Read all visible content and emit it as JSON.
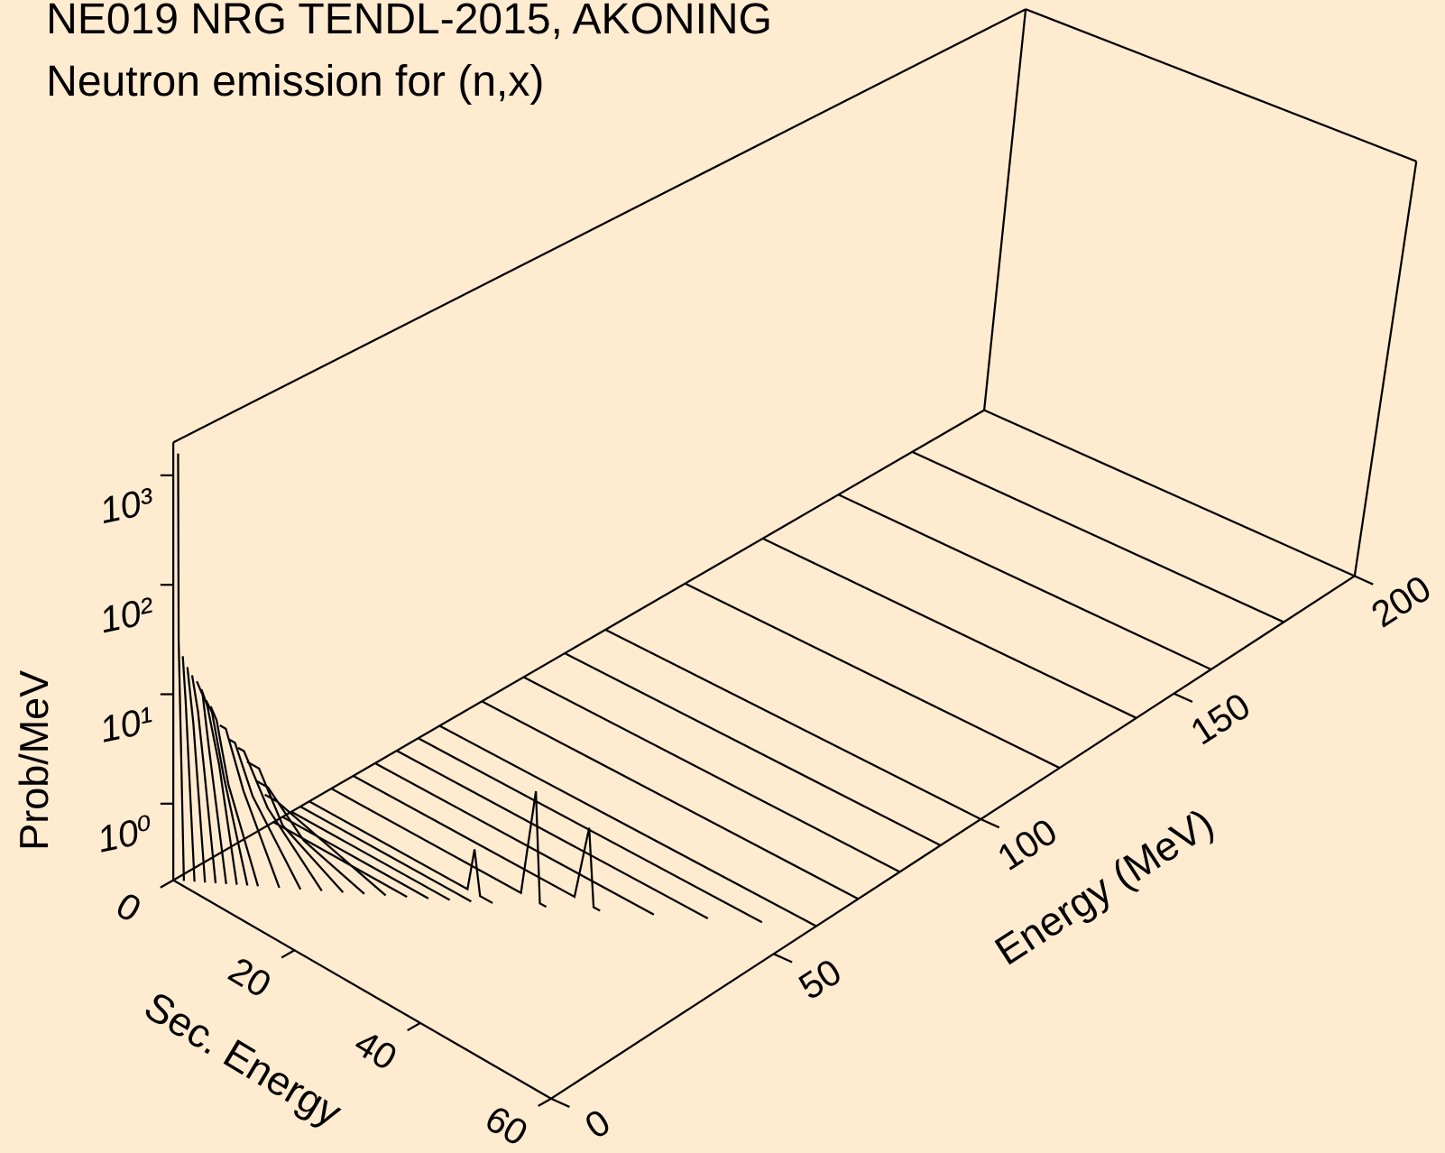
{
  "chart_data": {
    "type": "waterfall3d",
    "title": "NE019 NRG TENDL-2015, AKONING",
    "subtitle": "Neutron emission for (n,x)",
    "xlabel": "Sec. Energy",
    "ylabel": "Energy (MeV)",
    "zlabel": "Prob/MeV",
    "color": "#000000",
    "xlim": [
      0,
      60
    ],
    "xticks": [
      0,
      20,
      40,
      60
    ],
    "ylim": [
      0,
      200
    ],
    "yticks": [
      0,
      50,
      100,
      150,
      200
    ],
    "zlim": [
      0.2,
      2000
    ],
    "zscale": "log",
    "zticks": [
      {
        "value": 1,
        "label": "10⁰"
      },
      {
        "value": 10,
        "label": "10¹"
      },
      {
        "value": 100,
        "label": "10²"
      },
      {
        "value": 1000,
        "label": "10³"
      }
    ],
    "series": [
      {
        "energy": 1,
        "x": [
          0,
          0.1,
          1
        ],
        "values": [
          1500,
          30,
          0.2
        ]
      },
      {
        "energy": 2,
        "x": [
          0,
          0.5,
          2
        ],
        "values": [
          20,
          8,
          0.2
        ]
      },
      {
        "energy": 3,
        "x": [
          0,
          1,
          3
        ],
        "values": [
          15,
          5,
          0.2
        ]
      },
      {
        "energy": 4,
        "x": [
          0,
          1,
          2,
          4
        ],
        "values": [
          12,
          6,
          2,
          0.2
        ]
      },
      {
        "energy": 5,
        "x": [
          0,
          1,
          2,
          5
        ],
        "values": [
          10,
          8,
          3,
          0.2
        ]
      },
      {
        "energy": 6,
        "x": [
          0,
          1,
          3,
          6
        ],
        "values": [
          8,
          6,
          2,
          0.2
        ]
      },
      {
        "energy": 7,
        "x": [
          0,
          1,
          3,
          7
        ],
        "values": [
          6,
          5,
          1.5,
          0.2
        ]
      },
      {
        "energy": 8,
        "x": [
          0,
          1,
          3,
          8
        ],
        "values": [
          5,
          4,
          1.2,
          0.2
        ]
      },
      {
        "energy": 10,
        "x": [
          0,
          1,
          4,
          10
        ],
        "values": [
          3,
          3,
          1,
          0.2
        ]
      },
      {
        "energy": 12,
        "x": [
          0,
          1,
          4,
          12
        ],
        "values": [
          2,
          2,
          0.8,
          0.2
        ]
      },
      {
        "energy": 14,
        "x": [
          0,
          1,
          5,
          14
        ],
        "values": [
          1.5,
          1.5,
          0.6,
          0.2
        ]
      },
      {
        "energy": 16,
        "x": [
          0,
          2,
          6,
          16
        ],
        "values": [
          1,
          1,
          0.4,
          0.2
        ]
      },
      {
        "energy": 18,
        "x": [
          0,
          2,
          8,
          18
        ],
        "values": [
          0.6,
          0.6,
          0.3,
          0.2
        ]
      },
      {
        "energy": 20,
        "x": [
          0,
          2,
          20
        ],
        "values": [
          0.4,
          0.4,
          0.2
        ]
      },
      {
        "energy": 22,
        "x": [
          0,
          22
        ],
        "values": [
          0.2,
          0.2
        ]
      },
      {
        "energy": 24,
        "x": [
          0,
          24
        ],
        "values": [
          0.2,
          0.2
        ]
      },
      {
        "energy": 26,
        "x": [
          0,
          26
        ],
        "values": [
          0.2,
          0.2
        ]
      },
      {
        "energy": 28,
        "x": [
          0,
          28
        ],
        "values": [
          0.2,
          0.2
        ]
      },
      {
        "energy": 30,
        "x": [
          0,
          26,
          27,
          28,
          30
        ],
        "values": [
          0.2,
          0.2,
          0.5,
          0.2,
          0.2
        ]
      },
      {
        "energy": 35,
        "x": [
          0,
          31,
          33,
          34,
          35
        ],
        "values": [
          0.2,
          0.2,
          2,
          0.2,
          0.2
        ]
      },
      {
        "energy": 40,
        "x": [
          0,
          36,
          38,
          39,
          40
        ],
        "values": [
          0.2,
          0.2,
          1,
          0.2,
          0.2
        ]
      },
      {
        "energy": 45,
        "x": [
          0,
          45
        ],
        "values": [
          0.2,
          0.2
        ]
      },
      {
        "energy": 50,
        "x": [
          0,
          50
        ],
        "values": [
          0.2,
          0.2
        ]
      },
      {
        "energy": 55,
        "x": [
          0,
          55
        ],
        "values": [
          0.2,
          0.2
        ]
      },
      {
        "energy": 60,
        "x": [
          0,
          60
        ],
        "values": [
          0.2,
          0.2
        ]
      },
      {
        "energy": 70,
        "x": [
          0,
          60
        ],
        "values": [
          0.2,
          0.2
        ]
      },
      {
        "energy": 80,
        "x": [
          0,
          60
        ],
        "values": [
          0.2,
          0.2
        ]
      },
      {
        "energy": 90,
        "x": [
          0,
          60
        ],
        "values": [
          0.2,
          0.2
        ]
      },
      {
        "energy": 100,
        "x": [
          0,
          60
        ],
        "values": [
          0.2,
          0.2
        ]
      },
      {
        "energy": 120,
        "x": [
          0,
          60
        ],
        "values": [
          0.2,
          0.2
        ]
      },
      {
        "energy": 140,
        "x": [
          0,
          60
        ],
        "values": [
          0.2,
          0.2
        ]
      },
      {
        "energy": 160,
        "x": [
          0,
          60
        ],
        "values": [
          0.2,
          0.2
        ]
      },
      {
        "energy": 180,
        "x": [
          0,
          60
        ],
        "values": [
          0.2,
          0.2
        ]
      }
    ]
  }
}
